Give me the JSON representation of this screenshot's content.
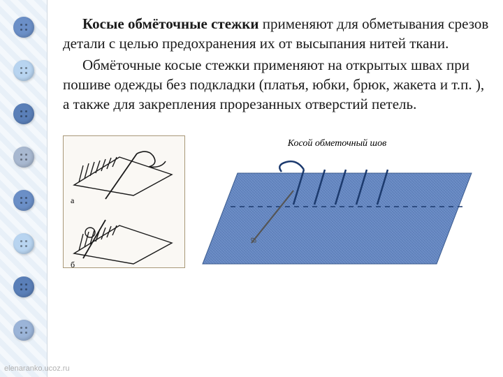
{
  "sidebar": {
    "background_stripe_colors": [
      "#e8f0f8",
      "#f4f8fc"
    ],
    "buttons": [
      {
        "color": "#6b8fc7"
      },
      {
        "color": "#b8d4f0"
      },
      {
        "color": "#5a7fb8"
      },
      {
        "color": "#a8b8d0"
      },
      {
        "color": "#6b8fc7"
      },
      {
        "color": "#b8d4f0"
      },
      {
        "color": "#5a7fb8"
      },
      {
        "color": "#9bb4d8"
      }
    ]
  },
  "text": {
    "bold_intro": "Косые обмёточные стежки",
    "para1_rest": " применяют для обметывания срезов детали с целью предохранения их от высыпания нитей ткани.",
    "para2": "Обмёточные косые стежки применяют на открытых швах при пошиве одежды без подкладки (платья, юбки, брюк, жакета и т.п. ), а также для закрепления прорезанных отверстий петель.",
    "font_size": 21,
    "text_color": "#1a1a1a"
  },
  "images": {
    "left": {
      "bg": "#faf8f4",
      "border": "#a89878",
      "label_a": "а",
      "label_b": "б"
    },
    "right": {
      "title": "Косой обметочный шов",
      "fabric_color": "#6a8bc4",
      "fabric_texture": "#5478b0",
      "thread_color": "#1c3a6e",
      "needle_color": "#555555"
    }
  },
  "watermark": "elenaranko.ucoz.ru"
}
